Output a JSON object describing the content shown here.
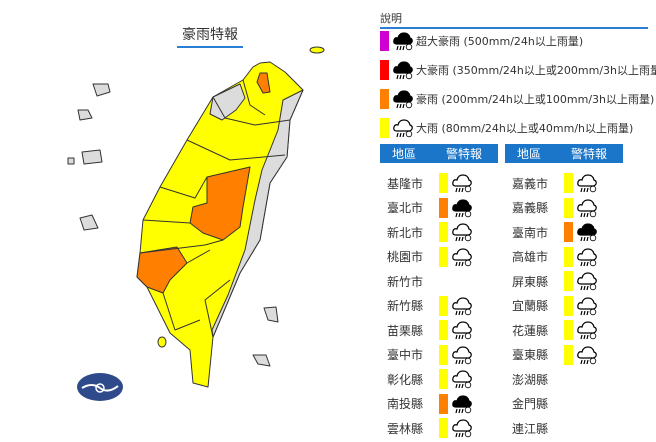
{
  "map": {
    "title": "豪雨特報"
  },
  "colors": {
    "super_torrential": "#d000d0",
    "extremely_heavy": "#ff0000",
    "torrential": "#ff8000",
    "heavy": "#ffff00",
    "none": "#dcdcdc",
    "header": "#1b75c8"
  },
  "legend": {
    "heading": "說明",
    "items": [
      {
        "level": "super_torrential",
        "icon": "cloud-heavy-rain-filled-icon",
        "label": "超大豪雨 (500mm/24h以上雨量)"
      },
      {
        "level": "extremely_heavy",
        "icon": "cloud-heavy-rain-filled-icon",
        "label": "大豪雨 (350mm/24h以上或200mm/3h以上雨量)"
      },
      {
        "level": "torrential",
        "icon": "cloud-rain-filled-icon",
        "label": "豪雨 (200mm/24h以上或100mm/3h以上雨量)"
      },
      {
        "level": "heavy",
        "icon": "cloud-rain-outline-icon",
        "label": "大雨 (80mm/24h以上或40mm/h以上雨量)"
      }
    ]
  },
  "table": {
    "col_region": "地區",
    "col_warning": "警特報",
    "left": [
      {
        "region": "基隆市",
        "level": "heavy"
      },
      {
        "region": "臺北市",
        "level": "torrential"
      },
      {
        "region": "新北市",
        "level": "heavy"
      },
      {
        "region": "桃園市",
        "level": "heavy"
      },
      {
        "region": "新竹市",
        "level": null
      },
      {
        "region": "新竹縣",
        "level": "heavy"
      },
      {
        "region": "苗栗縣",
        "level": "heavy"
      },
      {
        "region": "臺中市",
        "level": "heavy"
      },
      {
        "region": "彰化縣",
        "level": "heavy"
      },
      {
        "region": "南投縣",
        "level": "torrential"
      },
      {
        "region": "雲林縣",
        "level": "heavy"
      }
    ],
    "right": [
      {
        "region": "嘉義市",
        "level": "heavy"
      },
      {
        "region": "嘉義縣",
        "level": "heavy"
      },
      {
        "region": "臺南市",
        "level": "torrential"
      },
      {
        "region": "高雄市",
        "level": "heavy"
      },
      {
        "region": "屏東縣",
        "level": "heavy"
      },
      {
        "region": "宜蘭縣",
        "level": "heavy"
      },
      {
        "region": "花蓮縣",
        "level": "heavy"
      },
      {
        "region": "臺東縣",
        "level": "heavy"
      },
      {
        "region": "澎湖縣",
        "level": null
      },
      {
        "region": "金門縣",
        "level": null
      },
      {
        "region": "連江縣",
        "level": null
      }
    ]
  }
}
